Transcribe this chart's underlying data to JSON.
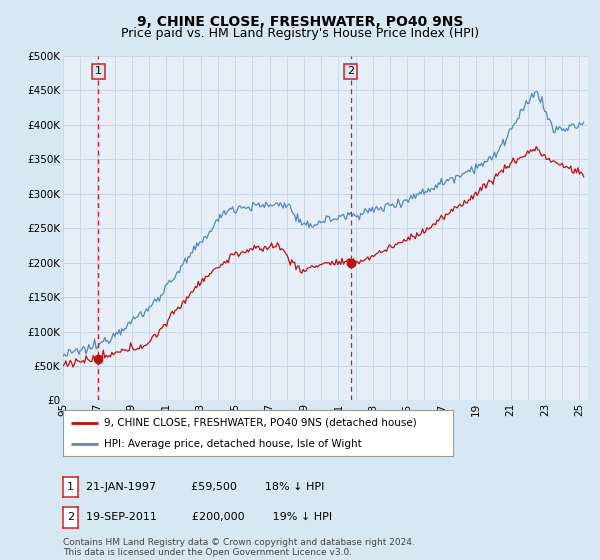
{
  "title": "9, CHINE CLOSE, FRESHWATER, PO40 9NS",
  "subtitle": "Price paid vs. HM Land Registry's House Price Index (HPI)",
  "ylabel_ticks": [
    "£0",
    "£50K",
    "£100K",
    "£150K",
    "£200K",
    "£250K",
    "£300K",
    "£350K",
    "£400K",
    "£450K",
    "£500K"
  ],
  "ytick_values": [
    0,
    50000,
    100000,
    150000,
    200000,
    250000,
    300000,
    350000,
    400000,
    450000,
    500000
  ],
  "ylim": [
    0,
    500000
  ],
  "xlim_start": 1995.0,
  "xlim_end": 2025.5,
  "bg_color": "#d8e8f3",
  "plot_bg_color": "#e6eef8",
  "grid_color": "#c8d8e8",
  "hpi_color": "#5588bb",
  "price_color": "#bb1111",
  "dashed_line_color": "#cc2222",
  "marker1_x": 1997.055,
  "marker1_y": 59500,
  "marker2_x": 2011.72,
  "marker2_y": 200000,
  "annotation1_label": "1",
  "annotation2_label": "2",
  "legend_line1": "9, CHINE CLOSE, FRESHWATER, PO40 9NS (detached house)",
  "legend_line2": "HPI: Average price, detached house, Isle of Wight",
  "table_row1": [
    "1",
    "21-JAN-1997",
    "£59,500",
    "18% ↓ HPI"
  ],
  "table_row2": [
    "2",
    "19-SEP-2011",
    "£200,000",
    "19% ↓ HPI"
  ],
  "footer": "Contains HM Land Registry data © Crown copyright and database right 2024.\nThis data is licensed under the Open Government Licence v3.0.",
  "title_fontsize": 10,
  "subtitle_fontsize": 9,
  "tick_fontsize": 7.5,
  "legend_fontsize": 7.5,
  "table_fontsize": 8,
  "footer_fontsize": 6.5
}
